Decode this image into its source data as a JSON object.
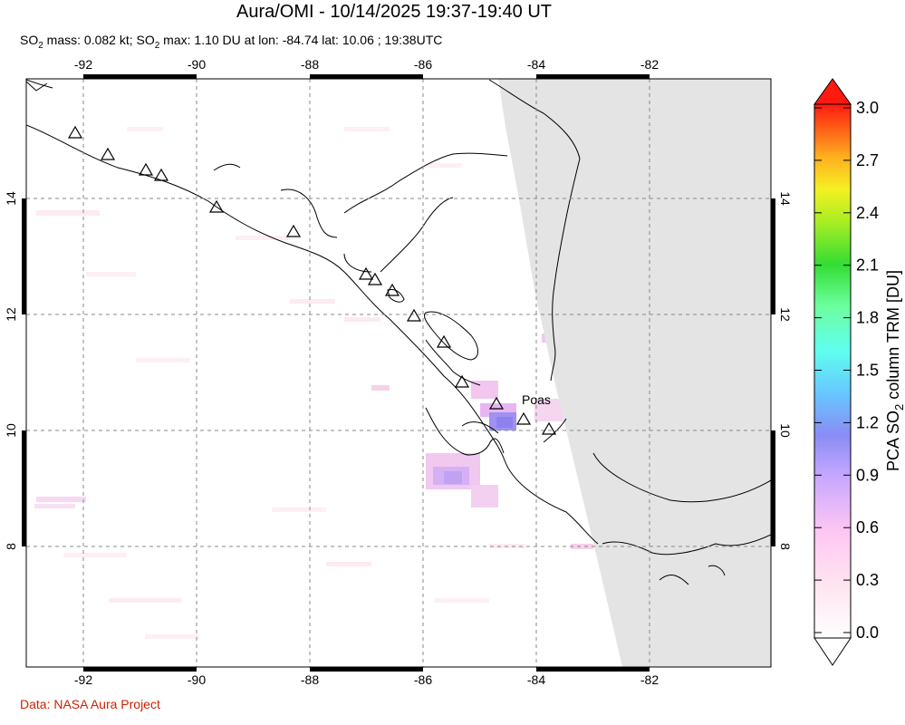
{
  "header": {
    "title": "Aura/OMI - 10/14/2025 19:37-19:40 UT",
    "subtitle_parts": {
      "so2": "SO",
      "sub": "2",
      "mass": " mass: 0.082 kt; SO",
      "rest": " max: 1.10 DU at lon: -84.74 lat: 10.06 ; 19:38UTC"
    }
  },
  "map": {
    "lon_ticks": [
      "-92",
      "-90",
      "-88",
      "-86",
      "-84",
      "-82"
    ],
    "lat_ticks": [
      "14",
      "12",
      "10",
      "8"
    ],
    "volcano_label": "Poas"
  },
  "colorbar": {
    "title_prefix": "PCA SO",
    "title_sub": "2",
    "title_suffix": " column TRM [DU]",
    "ticks": [
      "3.0",
      "2.7",
      "2.4",
      "2.1",
      "1.8",
      "1.5",
      "1.2",
      "0.9",
      "0.6",
      "0.3",
      "0.0"
    ],
    "range": [
      0.0,
      3.0
    ]
  },
  "footer": {
    "credit": "Data: NASA Aura Project"
  }
}
